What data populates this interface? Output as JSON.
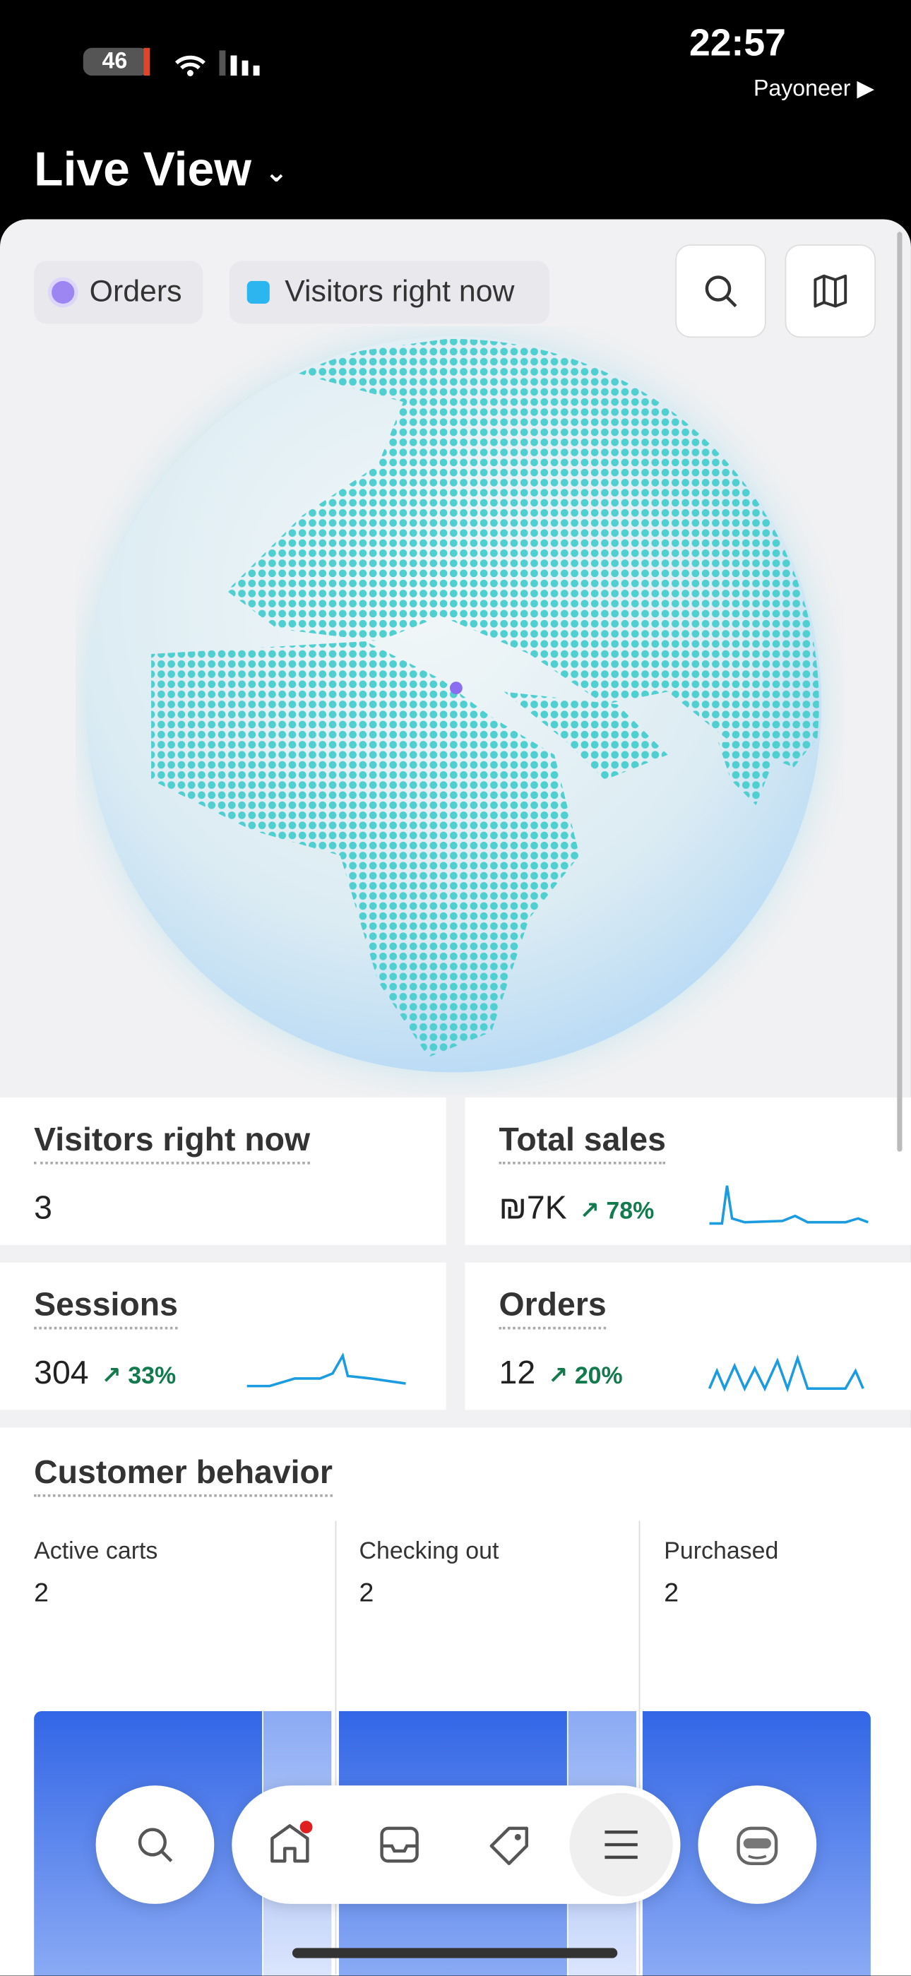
{
  "status_bar": {
    "time": "22:57",
    "battery": "46",
    "back_app": "Payoneer ▶"
  },
  "header": {
    "title": "Live View"
  },
  "legend": {
    "items": [
      "Orders",
      "Visitors right now"
    ]
  },
  "metrics": [
    {
      "label": "Visitors right now",
      "value": "3"
    },
    {
      "label": "Total sales",
      "value": "₪7K",
      "change": "78%"
    },
    {
      "label": "Sessions",
      "value": "304",
      "change": "33%"
    },
    {
      "label": "Orders",
      "value": "12",
      "change": "20%"
    }
  ],
  "customer_behavior": {
    "title": "Customer behavior",
    "stages": [
      {
        "label": "Active carts",
        "value": "2"
      },
      {
        "label": "Checking out",
        "value": "2"
      },
      {
        "label": "Purchased",
        "value": "2"
      }
    ]
  }
}
